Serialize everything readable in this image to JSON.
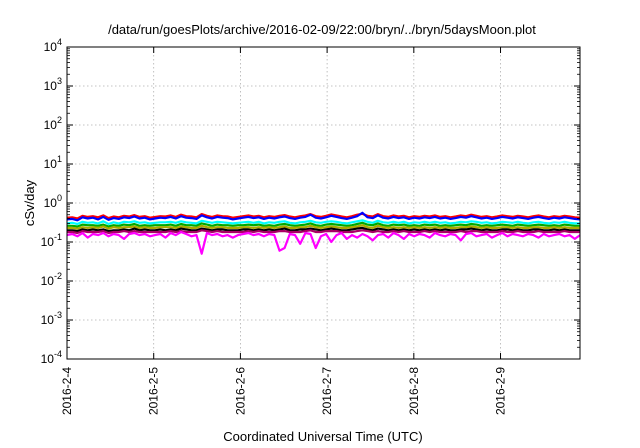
{
  "chart_data": {
    "type": "line",
    "title": "/data/run/goesPlots/archive/2016-02-09/22:00/bryn/../bryn/5daysMoon.plot",
    "xlabel": "Coordinated Universal Time (UTC)",
    "ylabel": "cSv/day",
    "y_scale": "log",
    "ylim": [
      0.0001,
      10000
    ],
    "y_ticks": [
      {
        "value": 0.0001,
        "base": "10",
        "exp": "-4"
      },
      {
        "value": 0.001,
        "base": "10",
        "exp": "-3"
      },
      {
        "value": 0.01,
        "base": "10",
        "exp": "-2"
      },
      {
        "value": 0.1,
        "base": "10",
        "exp": "-1"
      },
      {
        "value": 1,
        "base": "10",
        "exp": "0"
      },
      {
        "value": 10,
        "base": "10",
        "exp": "1"
      },
      {
        "value": 100,
        "base": "10",
        "exp": "2"
      },
      {
        "value": 1000,
        "base": "10",
        "exp": "3"
      },
      {
        "value": 10000,
        "base": "10",
        "exp": "4"
      }
    ],
    "x_range": [
      "2016-02-04",
      "2016-02-09 22:00"
    ],
    "x_ticks": [
      "2016-2-4",
      "2016-2-5",
      "2016-2-6",
      "2016-2-7",
      "2016-2-8",
      "2016-2-9"
    ],
    "grid": true,
    "series": [
      {
        "color": "#ff0000",
        "values": [
          0.42,
          0.43,
          0.4,
          0.47,
          0.44,
          0.46,
          0.43,
          0.48,
          0.41,
          0.45,
          0.43,
          0.47,
          0.45,
          0.49,
          0.44,
          0.46,
          0.42,
          0.44,
          0.46,
          0.45,
          0.48,
          0.44,
          0.5,
          0.46,
          0.45,
          0.43,
          0.52,
          0.47,
          0.44,
          0.48,
          0.46,
          0.45,
          0.42,
          0.44,
          0.46,
          0.48,
          0.45,
          0.47,
          0.43,
          0.46,
          0.44,
          0.47,
          0.49,
          0.45,
          0.43,
          0.46,
          0.48,
          0.52,
          0.46,
          0.44,
          0.47,
          0.51,
          0.48,
          0.45,
          0.43,
          0.46,
          0.5,
          0.53,
          0.47,
          0.45,
          0.52,
          0.46,
          0.44,
          0.48,
          0.45,
          0.47,
          0.43,
          0.46,
          0.44,
          0.47,
          0.45,
          0.48,
          0.44,
          0.46,
          0.43,
          0.45,
          0.48,
          0.46,
          0.5,
          0.47,
          0.44,
          0.46,
          0.43,
          0.45,
          0.48,
          0.46,
          0.44,
          0.47,
          0.45,
          0.43,
          0.46,
          0.48,
          0.45,
          0.43,
          0.46,
          0.44,
          0.47,
          0.45,
          0.43,
          0.42
        ]
      },
      {
        "color": "#0000ff",
        "values": [
          0.38,
          0.39,
          0.36,
          0.43,
          0.4,
          0.42,
          0.38,
          0.44,
          0.37,
          0.41,
          0.39,
          0.43,
          0.41,
          0.45,
          0.4,
          0.42,
          0.38,
          0.4,
          0.42,
          0.41,
          0.44,
          0.4,
          0.46,
          0.42,
          0.41,
          0.39,
          0.48,
          0.43,
          0.4,
          0.44,
          0.42,
          0.41,
          0.38,
          0.4,
          0.42,
          0.44,
          0.41,
          0.43,
          0.39,
          0.42,
          0.4,
          0.43,
          0.45,
          0.41,
          0.39,
          0.42,
          0.44,
          0.5,
          0.42,
          0.4,
          0.43,
          0.47,
          0.44,
          0.41,
          0.39,
          0.42,
          0.46,
          0.56,
          0.43,
          0.41,
          0.48,
          0.42,
          0.4,
          0.44,
          0.41,
          0.43,
          0.39,
          0.42,
          0.4,
          0.43,
          0.41,
          0.44,
          0.4,
          0.42,
          0.39,
          0.41,
          0.44,
          0.42,
          0.46,
          0.43,
          0.4,
          0.42,
          0.39,
          0.41,
          0.44,
          0.42,
          0.4,
          0.43,
          0.41,
          0.39,
          0.42,
          0.44,
          0.41,
          0.39,
          0.42,
          0.4,
          0.43,
          0.41,
          0.39,
          0.38
        ]
      },
      {
        "color": "#00ffff",
        "values": [
          0.3,
          0.31,
          0.29,
          0.33,
          0.31,
          0.32,
          0.3,
          0.34,
          0.29,
          0.32,
          0.3,
          0.33,
          0.32,
          0.34,
          0.31,
          0.32,
          0.3,
          0.31,
          0.32,
          0.32,
          0.33,
          0.31,
          0.34,
          0.32,
          0.31,
          0.3,
          0.35,
          0.33,
          0.31,
          0.33,
          0.32,
          0.31,
          0.3,
          0.31,
          0.32,
          0.33,
          0.31,
          0.33,
          0.3,
          0.32,
          0.31,
          0.33,
          0.34,
          0.31,
          0.3,
          0.32,
          0.33,
          0.35,
          0.32,
          0.31,
          0.33,
          0.34,
          0.33,
          0.31,
          0.3,
          0.32,
          0.34,
          0.36,
          0.33,
          0.31,
          0.35,
          0.32,
          0.31,
          0.33,
          0.31,
          0.33,
          0.3,
          0.32,
          0.31,
          0.33,
          0.31,
          0.33,
          0.31,
          0.32,
          0.3,
          0.31,
          0.33,
          0.32,
          0.34,
          0.33,
          0.31,
          0.32,
          0.3,
          0.31,
          0.33,
          0.32,
          0.31,
          0.33,
          0.31,
          0.3,
          0.32,
          0.33,
          0.31,
          0.3,
          0.32,
          0.31,
          0.33,
          0.31,
          0.3,
          0.3
        ]
      },
      {
        "color": "#00aa00",
        "values": [
          0.26,
          0.26,
          0.25,
          0.28,
          0.27,
          0.27,
          0.26,
          0.28,
          0.25,
          0.27,
          0.26,
          0.28,
          0.27,
          0.29,
          0.26,
          0.27,
          0.26,
          0.27,
          0.27,
          0.27,
          0.28,
          0.26,
          0.29,
          0.27,
          0.27,
          0.26,
          0.3,
          0.28,
          0.26,
          0.28,
          0.27,
          0.27,
          0.26,
          0.27,
          0.27,
          0.28,
          0.27,
          0.28,
          0.26,
          0.27,
          0.26,
          0.28,
          0.29,
          0.27,
          0.26,
          0.27,
          0.28,
          0.3,
          0.27,
          0.26,
          0.28,
          0.29,
          0.28,
          0.27,
          0.26,
          0.27,
          0.29,
          0.31,
          0.28,
          0.27,
          0.3,
          0.27,
          0.26,
          0.28,
          0.27,
          0.28,
          0.26,
          0.27,
          0.26,
          0.28,
          0.27,
          0.28,
          0.26,
          0.27,
          0.26,
          0.27,
          0.28,
          0.27,
          0.29,
          0.28,
          0.26,
          0.27,
          0.26,
          0.27,
          0.28,
          0.27,
          0.26,
          0.28,
          0.27,
          0.26,
          0.27,
          0.28,
          0.27,
          0.26,
          0.27,
          0.26,
          0.28,
          0.27,
          0.26,
          0.26
        ]
      },
      {
        "color": "#aaaa00",
        "values": [
          0.23,
          0.23,
          0.22,
          0.24,
          0.23,
          0.24,
          0.23,
          0.25,
          0.22,
          0.24,
          0.23,
          0.24,
          0.24,
          0.25,
          0.23,
          0.24,
          0.23,
          0.23,
          0.24,
          0.24,
          0.24,
          0.23,
          0.25,
          0.24,
          0.23,
          0.23,
          0.26,
          0.24,
          0.23,
          0.24,
          0.24,
          0.23,
          0.23,
          0.23,
          0.24,
          0.24,
          0.23,
          0.24,
          0.23,
          0.24,
          0.23,
          0.24,
          0.25,
          0.23,
          0.23,
          0.24,
          0.24,
          0.26,
          0.24,
          0.23,
          0.24,
          0.25,
          0.24,
          0.23,
          0.23,
          0.24,
          0.25,
          0.27,
          0.24,
          0.23,
          0.26,
          0.24,
          0.23,
          0.24,
          0.23,
          0.24,
          0.23,
          0.24,
          0.23,
          0.24,
          0.23,
          0.24,
          0.23,
          0.24,
          0.23,
          0.23,
          0.24,
          0.24,
          0.25,
          0.24,
          0.23,
          0.24,
          0.23,
          0.23,
          0.24,
          0.24,
          0.23,
          0.24,
          0.23,
          0.23,
          0.24,
          0.24,
          0.23,
          0.23,
          0.24,
          0.23,
          0.24,
          0.23,
          0.23,
          0.23
        ]
      },
      {
        "color": "#000000",
        "values": [
          0.2,
          0.2,
          0.19,
          0.21,
          0.2,
          0.21,
          0.2,
          0.21,
          0.19,
          0.2,
          0.2,
          0.21,
          0.2,
          0.22,
          0.2,
          0.21,
          0.2,
          0.2,
          0.21,
          0.2,
          0.21,
          0.2,
          0.22,
          0.21,
          0.2,
          0.2,
          0.22,
          0.21,
          0.2,
          0.21,
          0.21,
          0.2,
          0.2,
          0.2,
          0.21,
          0.21,
          0.2,
          0.21,
          0.2,
          0.21,
          0.2,
          0.21,
          0.22,
          0.2,
          0.2,
          0.21,
          0.21,
          0.22,
          0.21,
          0.2,
          0.21,
          0.22,
          0.21,
          0.2,
          0.2,
          0.21,
          0.22,
          0.23,
          0.21,
          0.2,
          0.22,
          0.21,
          0.2,
          0.21,
          0.2,
          0.21,
          0.2,
          0.21,
          0.2,
          0.21,
          0.2,
          0.21,
          0.2,
          0.21,
          0.2,
          0.2,
          0.21,
          0.21,
          0.22,
          0.21,
          0.2,
          0.21,
          0.2,
          0.2,
          0.21,
          0.21,
          0.2,
          0.21,
          0.2,
          0.2,
          0.21,
          0.21,
          0.2,
          0.2,
          0.21,
          0.2,
          0.21,
          0.2,
          0.2,
          0.2
        ]
      },
      {
        "color": "#aa0066",
        "values": [
          0.18,
          0.18,
          0.17,
          0.19,
          0.18,
          0.18,
          0.18,
          0.19,
          0.17,
          0.18,
          0.18,
          0.19,
          0.18,
          0.19,
          0.18,
          0.18,
          0.18,
          0.18,
          0.18,
          0.18,
          0.19,
          0.18,
          0.19,
          0.18,
          0.18,
          0.18,
          0.2,
          0.19,
          0.18,
          0.19,
          0.18,
          0.18,
          0.18,
          0.18,
          0.18,
          0.19,
          0.18,
          0.19,
          0.18,
          0.18,
          0.18,
          0.19,
          0.19,
          0.18,
          0.18,
          0.18,
          0.19,
          0.2,
          0.18,
          0.18,
          0.19,
          0.19,
          0.19,
          0.18,
          0.18,
          0.18,
          0.19,
          0.2,
          0.19,
          0.18,
          0.19,
          0.18,
          0.18,
          0.19,
          0.18,
          0.19,
          0.18,
          0.18,
          0.18,
          0.19,
          0.18,
          0.19,
          0.18,
          0.18,
          0.18,
          0.18,
          0.19,
          0.18,
          0.19,
          0.19,
          0.18,
          0.18,
          0.18,
          0.18,
          0.19,
          0.18,
          0.18,
          0.19,
          0.18,
          0.18,
          0.18,
          0.19,
          0.18,
          0.18,
          0.18,
          0.18,
          0.19,
          0.18,
          0.18,
          0.18
        ]
      },
      {
        "color": "#ff00ff",
        "values": [
          0.15,
          0.16,
          0.14,
          0.17,
          0.13,
          0.16,
          0.15,
          0.17,
          0.14,
          0.16,
          0.15,
          0.12,
          0.16,
          0.17,
          0.15,
          0.16,
          0.14,
          0.15,
          0.16,
          0.13,
          0.17,
          0.15,
          0.18,
          0.16,
          0.14,
          0.15,
          0.05,
          0.17,
          0.15,
          0.16,
          0.14,
          0.15,
          0.13,
          0.15,
          0.16,
          0.17,
          0.15,
          0.16,
          0.14,
          0.16,
          0.15,
          0.06,
          0.07,
          0.16,
          0.15,
          0.09,
          0.17,
          0.16,
          0.07,
          0.14,
          0.16,
          0.1,
          0.15,
          0.17,
          0.12,
          0.15,
          0.13,
          0.16,
          0.14,
          0.11,
          0.15,
          0.16,
          0.13,
          0.17,
          0.15,
          0.12,
          0.16,
          0.14,
          0.16,
          0.15,
          0.13,
          0.17,
          0.15,
          0.14,
          0.16,
          0.15,
          0.11,
          0.16,
          0.17,
          0.14,
          0.15,
          0.16,
          0.13,
          0.15,
          0.17,
          0.14,
          0.16,
          0.15,
          0.14,
          0.16,
          0.15,
          0.13,
          0.16,
          0.14,
          0.15,
          0.16,
          0.14,
          0.15,
          0.12,
          0.15
        ]
      }
    ]
  }
}
